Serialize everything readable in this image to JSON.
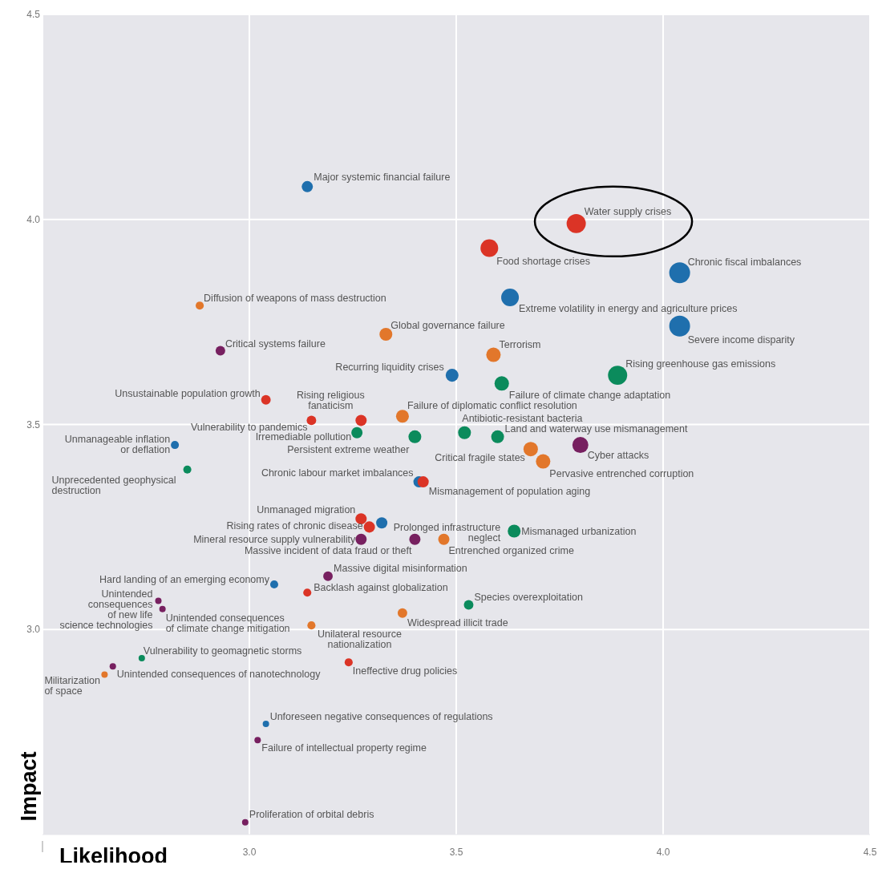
{
  "chart_data": {
    "type": "bubble",
    "xlabel": "Likelihood",
    "ylabel": "Impact",
    "xlim": [
      2.5,
      4.5
    ],
    "ylim": [
      2.5,
      4.5
    ],
    "xticks": [
      {
        "value": 2.5,
        "label": null
      },
      {
        "value": 3,
        "label": "3.0"
      },
      {
        "value": 3.5,
        "label": "3.5"
      },
      {
        "value": 4,
        "label": "4.0"
      },
      {
        "value": 4.5,
        "label": "4.5"
      }
    ],
    "yticks": [
      {
        "value": 3,
        "label": "3.0"
      },
      {
        "value": 3.5,
        "label": "3.5"
      },
      {
        "value": 4,
        "label": "4.0"
      },
      {
        "value": 4.5,
        "label": "4.5"
      }
    ],
    "grid": true,
    "series": [
      {
        "color": "#1f6fad",
        "x": [
          3.14,
          4.04,
          3.63,
          4.04,
          3.49,
          2.82,
          3.41,
          3.32,
          3.06,
          3.04
        ],
        "values": [
          4.08,
          3.87,
          3.81,
          3.74,
          3.62,
          3.45,
          3.36,
          3.26,
          3.11,
          2.77
        ],
        "sizes": [
          0.29,
          1,
          0.72,
          1,
          0.38,
          0.15,
          0.29,
          0.29,
          0.15,
          0.095
        ]
      },
      {
        "color": "#db3426",
        "x": [
          3.79,
          3.58,
          3.04,
          3.15,
          3.27,
          3.42,
          3.27,
          3.29,
          3.14,
          3.24
        ],
        "values": [
          3.99,
          3.93,
          3.56,
          3.51,
          3.51,
          3.36,
          3.27,
          3.25,
          3.09,
          2.92
        ],
        "sizes": [
          0.85,
          0.72,
          0.21,
          0.21,
          0.29,
          0.29,
          0.29,
          0.29,
          0.15,
          0.15
        ]
      },
      {
        "color": "#e2772b",
        "x": [
          2.88,
          3.33,
          3.59,
          3.37,
          3.68,
          3.71,
          3.47,
          3.37,
          3.15,
          2.65
        ],
        "values": [
          3.79,
          3.72,
          3.67,
          3.52,
          3.44,
          3.41,
          3.22,
          3.04,
          3.01,
          2.89
        ],
        "sizes": [
          0.15,
          0.38,
          0.48,
          0.38,
          0.48,
          0.48,
          0.29,
          0.21,
          0.15,
          0.095
        ]
      },
      {
        "color": "#0b8b5c",
        "x": [
          3.89,
          3.61,
          3.26,
          3.52,
          3.4,
          3.6,
          2.85,
          3.64,
          3.53,
          2.74
        ],
        "values": [
          3.62,
          3.6,
          3.48,
          3.48,
          3.47,
          3.47,
          3.39,
          3.24,
          3.06,
          2.93
        ],
        "sizes": [
          0.85,
          0.48,
          0.29,
          0.38,
          0.38,
          0.38,
          0.15,
          0.38,
          0.21,
          0.095
        ]
      },
      {
        "color": "#772060",
        "x": [
          2.93,
          3.8,
          3.27,
          3.4,
          3.19,
          2.78,
          2.79,
          2.67,
          3.02,
          2.99
        ],
        "values": [
          3.68,
          3.45,
          3.22,
          3.22,
          3.13,
          3.07,
          3.05,
          2.91,
          2.73,
          2.53
        ],
        "sizes": [
          0.21,
          0.59,
          0.29,
          0.29,
          0.21,
          0.095,
          0.095,
          0.095,
          0.095,
          0.095
        ]
      }
    ],
    "annotations": [
      {
        "text": "Major systemic financial failure",
        "x": 3.14,
        "y": 4.08
      },
      {
        "text": "Water supply crises",
        "x": 3.79,
        "y": 3.99
      },
      {
        "text": "Food shortage crises",
        "x": 3.58,
        "y": 3.93
      },
      {
        "text": "Chronic fiscal imbalances",
        "x": 4.04,
        "y": 3.87
      },
      {
        "text": "Extreme volatility in energy and agriculture prices",
        "x": 3.63,
        "y": 3.81
      },
      {
        "text": "Diffusion of weapons of mass destruction",
        "x": 2.88,
        "y": 3.79
      },
      {
        "text": "Severe income disparity",
        "x": 4.04,
        "y": 3.74
      },
      {
        "text": "Global governance failure",
        "x": 3.33,
        "y": 3.72
      },
      {
        "text": "Critical systems failure",
        "x": 2.93,
        "y": 3.68
      },
      {
        "text": "Terrorism",
        "x": 3.59,
        "y": 3.67
      },
      {
        "text": "Recurring liquidity crises",
        "x": 3.49,
        "y": 3.62
      },
      {
        "text": "Rising greenhouse gas emissions",
        "x": 3.89,
        "y": 3.62
      },
      {
        "text": "Failure of climate change adaptation",
        "x": 3.61,
        "y": 3.6
      },
      {
        "text": "Unsustainable population growth",
        "x": 3.04,
        "y": 3.56
      },
      {
        "text": "Vulnerability to pandemics",
        "x": 3.15,
        "y": 3.51
      },
      {
        "text": "Rising religious\nfanaticism",
        "x": 3.27,
        "y": 3.51
      },
      {
        "text": "Failure of diplomatic conflict resolution",
        "x": 3.37,
        "y": 3.52
      },
      {
        "text": "Irremediable pollution",
        "x": 3.26,
        "y": 3.48
      },
      {
        "text": "Antibiotic-resistant bacteria",
        "x": 3.52,
        "y": 3.48
      },
      {
        "text": "Persistent extreme weather",
        "x": 3.4,
        "y": 3.47
      },
      {
        "text": "Land and waterway use mismanagement",
        "x": 3.6,
        "y": 3.47
      },
      {
        "text": "Unmanageable inflation\nor deflation",
        "x": 2.82,
        "y": 3.45
      },
      {
        "text": "Cyber attacks",
        "x": 3.8,
        "y": 3.45
      },
      {
        "text": "Critical fragile states",
        "x": 3.68,
        "y": 3.44
      },
      {
        "text": "Pervasive entrenched corruption",
        "x": 3.71,
        "y": 3.41
      },
      {
        "text": "Unprecedented geophysical\ndestruction",
        "x": 2.85,
        "y": 3.39
      },
      {
        "text": "Chronic labour market imbalances",
        "x": 3.41,
        "y": 3.36
      },
      {
        "text": "Mismanagement of population aging",
        "x": 3.42,
        "y": 3.36
      },
      {
        "text": "Unmanaged migration",
        "x": 3.27,
        "y": 3.27
      },
      {
        "text": "Prolonged infrastructure\nneglect",
        "x": 3.32,
        "y": 3.26
      },
      {
        "text": "Rising rates of chronic disease",
        "x": 3.29,
        "y": 3.25
      },
      {
        "text": "Mismanaged urbanization",
        "x": 3.64,
        "y": 3.24
      },
      {
        "text": "Mineral resource supply vulnerability",
        "x": 3.27,
        "y": 3.22
      },
      {
        "text": "Massive incident of data fraud or theft",
        "x": 3.4,
        "y": 3.22
      },
      {
        "text": "Entrenched organized crime",
        "x": 3.47,
        "y": 3.22
      },
      {
        "text": "Massive digital misinformation",
        "x": 3.19,
        "y": 3.13
      },
      {
        "text": "Hard landing of an emerging economy",
        "x": 3.06,
        "y": 3.11
      },
      {
        "text": "Backlash against globalization",
        "x": 3.14,
        "y": 3.09
      },
      {
        "text": "Unintended\nconsequences\nof new life\nscience technologies",
        "x": 2.78,
        "y": 3.07
      },
      {
        "text": "Species overexploitation",
        "x": 3.53,
        "y": 3.06
      },
      {
        "text": "Unintended consequences\nof climate change mitigation",
        "x": 2.79,
        "y": 3.05
      },
      {
        "text": "Widespread illicit trade",
        "x": 3.37,
        "y": 3.04
      },
      {
        "text": "Unilateral resource\nnationalization",
        "x": 3.15,
        "y": 3.01
      },
      {
        "text": "Vulnerability to geomagnetic storms",
        "x": 2.74,
        "y": 2.93
      },
      {
        "text": "Ineffective drug policies",
        "x": 3.24,
        "y": 2.92
      },
      {
        "text": "Unintended consequences of nanotechnology",
        "x": 2.67,
        "y": 2.91
      },
      {
        "text": "Militarization\nof space",
        "x": 2.65,
        "y": 2.89
      },
      {
        "text": "Unforeseen negative consequences of regulations",
        "x": 3.04,
        "y": 2.77
      },
      {
        "text": "Failure of intellectual property regime",
        "x": 3.02,
        "y": 2.73
      },
      {
        "text": "Proliferation of orbital debris",
        "x": 2.99,
        "y": 2.53
      }
    ]
  }
}
